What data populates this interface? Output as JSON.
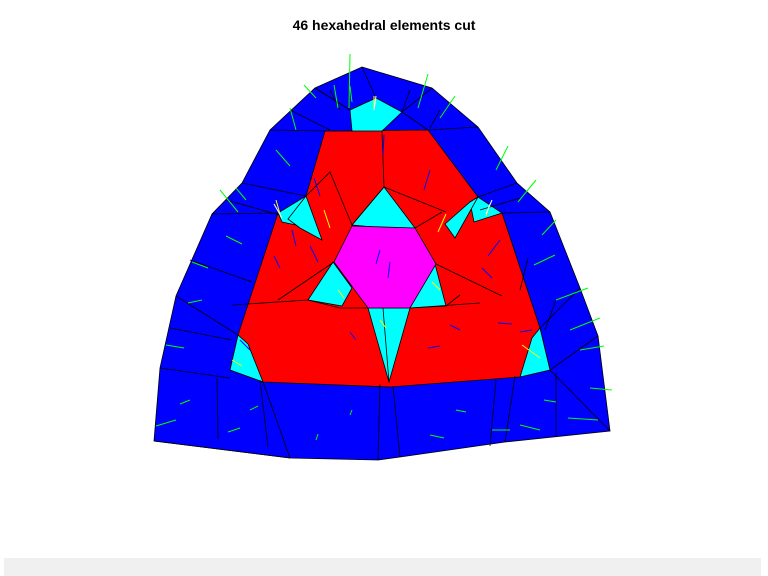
{
  "figure": {
    "title": "46 hexahedral elements cut"
  },
  "colors": {
    "background": "#ffffff",
    "outer_layer": "#0000ff",
    "inner_quads": "#ff0000",
    "transition_cells": "#00ffff",
    "center_cell": "#ff00ff",
    "edges": "#000000",
    "normals_outer": "#00ff00",
    "normals_inner": "#0000ff",
    "normals_mid": "#ffff00",
    "bottom_strip": "#f0f0f0"
  },
  "legend": []
}
